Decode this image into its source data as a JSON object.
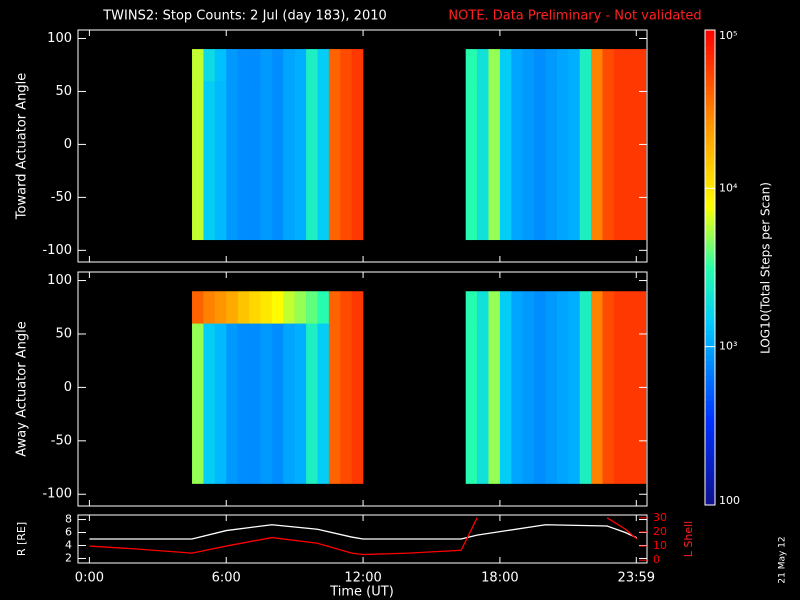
{
  "chart_data": [
    {
      "type": "heatmap",
      "title": "TWINS2: Stop Counts:  2 Jul (day 183), 2010",
      "note": "NOTE. Data Preliminary - Not validated",
      "ylabel": "Toward Actuator Angle",
      "ylim": [
        -111,
        108
      ],
      "yticks": [
        -100,
        -50,
        0,
        50,
        100
      ],
      "x_edges": [
        4.5,
        5,
        5.5,
        6,
        6.5,
        7,
        7.5,
        8,
        8.5,
        9,
        9.5,
        10,
        10.5,
        11,
        11.5,
        12,
        12.5,
        13,
        13.5,
        14,
        14.5,
        15,
        15.5,
        16,
        16.5,
        17,
        17.5,
        18,
        18.5,
        19,
        19.5,
        20,
        20.5,
        21,
        21.5,
        22,
        22.5,
        23,
        23.5,
        24,
        24.4
      ],
      "y_edges": [
        -90,
        60,
        90
      ],
      "z": [
        [
          6000,
          1500,
          1200,
          900,
          800,
          800,
          900,
          800,
          1000,
          1100,
          2500,
          1500,
          40000,
          50000,
          60000,
          null,
          null,
          null,
          null,
          null,
          null,
          null,
          null,
          null,
          3000,
          2000,
          5000,
          1500,
          1000,
          900,
          800,
          900,
          1000,
          1100,
          2500,
          30000,
          50000,
          60000,
          60000,
          60000
        ],
        [
          6000,
          1800,
          1300,
          900,
          800,
          800,
          900,
          800,
          1000,
          1100,
          2500,
          1500,
          40000,
          50000,
          60000,
          null,
          null,
          null,
          null,
          null,
          null,
          null,
          null,
          null,
          3000,
          2000,
          5000,
          1500,
          1000,
          900,
          800,
          900,
          1000,
          1100,
          2500,
          30000,
          50000,
          60000,
          60000,
          60000
        ]
      ],
      "colorbar": {
        "label": "LOG10(Total Steps per Scan)",
        "zlim": [
          100,
          100000
        ],
        "zticks": [
          {
            "value": 100,
            "label": "100"
          },
          {
            "value": 1000,
            "label": "10³"
          },
          {
            "value": 10000,
            "label": "10⁴"
          },
          {
            "value": 100000,
            "label": "10⁵"
          }
        ],
        "log": true
      }
    },
    {
      "type": "heatmap",
      "ylabel": "Away Actuator Angle",
      "ylim": [
        -111,
        108
      ],
      "yticks": [
        -100,
        -50,
        0,
        50,
        100
      ],
      "x_edges": [
        4.5,
        5,
        5.5,
        6,
        6.5,
        7,
        7.5,
        8,
        8.5,
        9,
        9.5,
        10,
        10.5,
        11,
        11.5,
        12,
        12.5,
        13,
        13.5,
        14,
        14.5,
        15,
        15.5,
        16,
        16.5,
        17,
        17.5,
        18,
        18.5,
        19,
        19.5,
        20,
        20.5,
        21,
        21.5,
        22,
        22.5,
        23,
        23.5,
        24,
        24.4
      ],
      "y_edges": [
        -90,
        60,
        90
      ],
      "z": [
        [
          5000,
          1500,
          1200,
          900,
          800,
          800,
          900,
          800,
          1000,
          1100,
          2500,
          1500,
          40000,
          50000,
          60000,
          null,
          null,
          null,
          null,
          null,
          null,
          null,
          null,
          null,
          3000,
          2000,
          5000,
          1500,
          1000,
          900,
          800,
          900,
          1000,
          1100,
          2500,
          30000,
          50000,
          60000,
          60000,
          60000
        ],
        [
          40000,
          30000,
          25000,
          20000,
          15000,
          12000,
          10000,
          8000,
          6000,
          5000,
          4000,
          3000,
          40000,
          50000,
          60000,
          null,
          null,
          null,
          null,
          null,
          null,
          null,
          null,
          null,
          3000,
          2000,
          5000,
          1500,
          1000,
          900,
          800,
          900,
          1000,
          1100,
          2500,
          30000,
          50000,
          60000,
          60000,
          60000
        ]
      ]
    },
    {
      "type": "line",
      "xlabel": "Time (UT)",
      "ylabel": "R [RE]",
      "y2label": "L Shell",
      "xlim": [
        -0.5,
        24.45
      ],
      "xticks": [
        {
          "value": 0,
          "label": "0:00"
        },
        {
          "value": 6,
          "label": "6:00"
        },
        {
          "value": 12,
          "label": "12:00"
        },
        {
          "value": 18,
          "label": "18:00"
        },
        {
          "value": 23.98,
          "label": "23:59"
        }
      ],
      "ylim": [
        1.3,
        8.7
      ],
      "yticks": [
        2,
        4,
        6,
        8
      ],
      "y2lim": [
        -2,
        32
      ],
      "y2ticks": [
        0,
        10,
        20,
        30
      ],
      "x": [
        0,
        2,
        4.5,
        6,
        8,
        10,
        11.5,
        12,
        14,
        16.3,
        17,
        20,
        22.7,
        23.5,
        24
      ],
      "series": [
        {
          "name": "R",
          "color": "#ffffff",
          "values": [
            5,
            5,
            5,
            6.3,
            7.2,
            6.5,
            5.3,
            5,
            5,
            5,
            5.6,
            7.2,
            7,
            6,
            5.2
          ]
        },
        {
          "name": "L Shell",
          "color": "#ff0000",
          "axis": "y2",
          "values": [
            10,
            8,
            5,
            10,
            16,
            12,
            5,
            4,
            5,
            7,
            30,
            null,
            30,
            22,
            15
          ]
        }
      ],
      "annotation": "21 May 12"
    }
  ]
}
